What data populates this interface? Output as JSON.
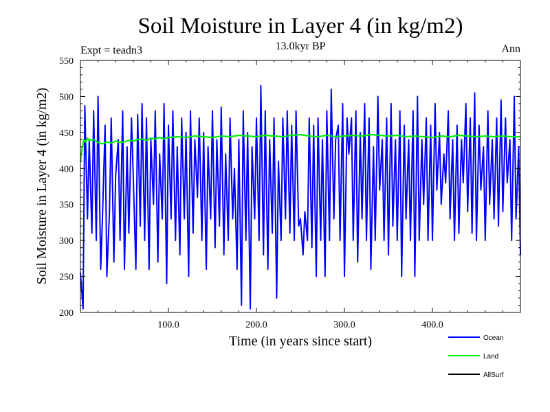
{
  "chart_data": {
    "type": "line",
    "title": "Soil Moisture in Layer 4 (in kg/m2)",
    "subtitle": "13.0kyr BP",
    "expt_label": "Expt = teadn3",
    "season_label": "Ann",
    "xlabel": "Time (in years since start)",
    "ylabel": "Soil Moisture in Layer 4 (in kg/m2)",
    "xlim": [
      0,
      500
    ],
    "ylim": [
      200,
      550
    ],
    "x_ticks": [
      100,
      200,
      300,
      400
    ],
    "x_tick_labels": [
      "100.0",
      "200.0",
      "300.0",
      "400.0"
    ],
    "y_ticks": [
      200,
      250,
      300,
      350,
      400,
      450,
      500,
      550
    ],
    "y_tick_labels": [
      "200",
      "250",
      "300",
      "350",
      "400",
      "450",
      "500",
      "550"
    ],
    "legend_position": "bottom-right",
    "series": [
      {
        "name": "Ocean",
        "color": "#0000ff",
        "x": [
          0,
          3,
          5,
          8,
          10,
          13,
          15,
          18,
          20,
          23,
          25,
          28,
          30,
          33,
          35,
          38,
          40,
          43,
          45,
          48,
          50,
          53,
          55,
          58,
          60,
          63,
          65,
          68,
          70,
          73,
          75,
          78,
          80,
          83,
          85,
          88,
          90,
          93,
          95,
          98,
          100,
          103,
          105,
          108,
          110,
          113,
          115,
          118,
          120,
          123,
          125,
          128,
          130,
          133,
          135,
          138,
          140,
          143,
          145,
          148,
          150,
          153,
          155,
          158,
          160,
          163,
          165,
          168,
          170,
          173,
          175,
          178,
          180,
          183,
          185,
          188,
          190,
          193,
          195,
          198,
          200,
          203,
          205,
          208,
          210,
          213,
          215,
          218,
          220,
          223,
          225,
          228,
          230,
          233,
          235,
          238,
          240,
          243,
          245,
          248,
          250,
          253,
          255,
          258,
          260,
          263,
          265,
          268,
          270,
          273,
          275,
          278,
          280,
          283,
          285,
          288,
          290,
          293,
          295,
          298,
          300,
          303,
          305,
          308,
          310,
          313,
          315,
          318,
          320,
          323,
          325,
          328,
          330,
          333,
          335,
          338,
          340,
          343,
          345,
          348,
          350,
          353,
          355,
          358,
          360,
          363,
          365,
          368,
          370,
          373,
          375,
          378,
          380,
          383,
          385,
          388,
          390,
          393,
          395,
          398,
          400,
          403,
          405,
          408,
          410,
          413,
          415,
          418,
          420,
          423,
          425,
          428,
          430,
          433,
          435,
          438,
          440,
          443,
          445,
          448,
          450,
          453,
          455,
          458,
          460,
          463,
          465,
          468,
          470,
          473,
          475,
          478,
          480,
          483,
          485,
          488,
          490,
          493,
          495,
          498,
          500
        ],
        "values": [
          255,
          205,
          487,
          330,
          440,
          310,
          480,
          300,
          500,
          260,
          330,
          460,
          250,
          340,
          470,
          270,
          390,
          440,
          300,
          480,
          260,
          430,
          310,
          470,
          390,
          260,
          475,
          320,
          490,
          300,
          470,
          260,
          440,
          350,
          480,
          270,
          420,
          330,
          490,
          240,
          460,
          330,
          480,
          300,
          430,
          280,
          470,
          330,
          450,
          250,
          480,
          310,
          440,
          360,
          470,
          300,
          450,
          260,
          430,
          330,
          480,
          290,
          440,
          320,
          485,
          280,
          420,
          300,
          470,
          330,
          400,
          260,
          440,
          210,
          480,
          300,
          450,
          205,
          430,
          330,
          470,
          300,
          515,
          280,
          480,
          260,
          440,
          310,
          470,
          220,
          410,
          300,
          470,
          330,
          480,
          310,
          460,
          300,
          480,
          320,
          330,
          280,
          340,
          300,
          470,
          290,
          460,
          250,
          470,
          300,
          440,
          250,
          480,
          300,
          510,
          330,
          440,
          460,
          300,
          490,
          250,
          470,
          420,
          470,
          300,
          480,
          270,
          450,
          330,
          490,
          300,
          470,
          260,
          430,
          300,
          500,
          370,
          440,
          300,
          470,
          280,
          490,
          320,
          440,
          300,
          480,
          250,
          460,
          330,
          440,
          300,
          480,
          250,
          500,
          300,
          440,
          350,
          470,
          300,
          460,
          300,
          490,
          370,
          450,
          350,
          420,
          380,
          480,
          330,
          440,
          300,
          460,
          310,
          440,
          380,
          490,
          340,
          470,
          310,
          505,
          300,
          460,
          370,
          430,
          300,
          480,
          350,
          440,
          330,
          470,
          320,
          495,
          340,
          470,
          380,
          440,
          300,
          500,
          330,
          430,
          280
        ]
      },
      {
        "name": "Land",
        "color": "#00ee00",
        "x": [
          0,
          2,
          4,
          6,
          8,
          10,
          15,
          20,
          25,
          30,
          35,
          40,
          45,
          50,
          55,
          60,
          65,
          70,
          75,
          80,
          85,
          90,
          95,
          100,
          110,
          120,
          130,
          140,
          150,
          160,
          170,
          180,
          190,
          200,
          210,
          220,
          230,
          240,
          250,
          260,
          270,
          280,
          290,
          300,
          310,
          320,
          330,
          340,
          350,
          360,
          370,
          380,
          390,
          400,
          410,
          420,
          430,
          440,
          450,
          460,
          470,
          480,
          490,
          500
        ],
        "values": [
          410,
          428,
          440,
          437,
          442,
          439,
          440,
          436,
          434,
          437,
          435,
          438,
          436,
          437,
          439,
          438,
          440,
          441,
          439,
          442,
          441,
          443,
          441,
          443,
          444,
          443,
          445,
          444,
          443,
          445,
          444,
          446,
          445,
          444,
          446,
          445,
          444,
          446,
          447,
          445,
          444,
          446,
          444,
          445,
          446,
          445,
          447,
          446,
          445,
          446,
          444,
          445,
          444,
          443,
          445,
          444,
          446,
          445,
          444,
          445,
          444,
          445,
          444,
          444
        ]
      },
      {
        "name": "AllSurf",
        "color": "#000000",
        "x": [],
        "values": []
      }
    ]
  }
}
